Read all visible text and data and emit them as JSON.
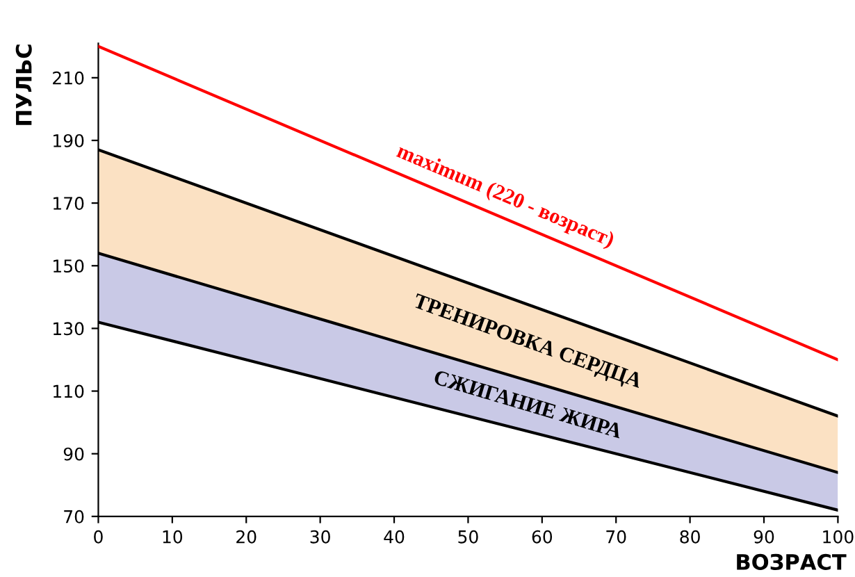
{
  "chart_data": {
    "type": "line",
    "xlabel": "ВОЗРАСТ",
    "ylabel": "ПУЛЬС",
    "x": [
      0,
      100
    ],
    "series": [
      {
        "type": "area",
        "name": "ТРЕНИРОВКА СЕРДЦА",
        "color": "#fbe1c3",
        "values": [
          187,
          102
        ]
      },
      {
        "type": "area",
        "name": "СЖИГАНИЕ ЖИРА",
        "color": "#c9c9e6",
        "values": [
          154,
          84
        ]
      },
      {
        "color": "#000000",
        "values": [
          132,
          72
        ]
      },
      {
        "name": "maximum (220 - возраст)",
        "color": "#ff0000",
        "values": [
          220,
          120
        ]
      }
    ],
    "xlim": [
      0,
      100
    ],
    "xticks": [
      0,
      10,
      20,
      30,
      40,
      50,
      60,
      70,
      80,
      90,
      100
    ],
    "ylim": [
      70,
      221
    ],
    "yticks": [
      70,
      90,
      110,
      130,
      150,
      170,
      190,
      210
    ],
    "grid": false,
    "legend": false
  }
}
